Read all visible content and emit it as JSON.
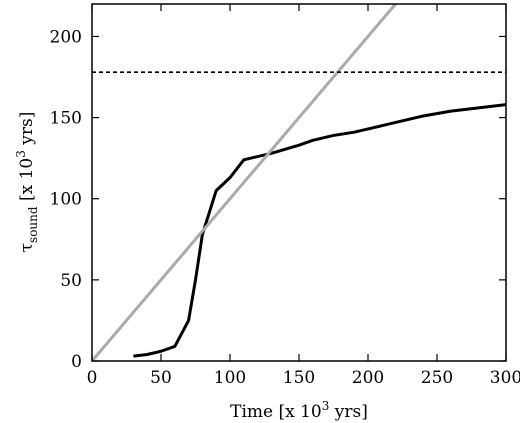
{
  "chart_data": {
    "type": "line",
    "xlabel": {
      "main": "Time [x 10",
      "sup": "3",
      "tail": " yrs]"
    },
    "ylabel": {
      "main": "τ",
      "sub": "sound",
      "mid": " [x 10",
      "sup": "3",
      "tail": " yrs]"
    },
    "xlim": [
      0,
      300
    ],
    "ylim": [
      0,
      220
    ],
    "xticks": [
      0,
      50,
      100,
      150,
      200,
      250,
      300
    ],
    "yticks": [
      0,
      50,
      100,
      150,
      200
    ],
    "grid": false,
    "series": [
      {
        "style": "solid",
        "color": "#000000",
        "x": [
          30,
          40,
          50,
          60,
          70,
          75,
          80,
          90,
          100,
          110,
          130,
          150,
          160,
          175,
          190,
          200,
          220,
          240,
          260,
          280,
          300
        ],
        "y": [
          3,
          4,
          6,
          9,
          25,
          50,
          78,
          105,
          113,
          124,
          128,
          133,
          136,
          139,
          141,
          143,
          147,
          151,
          154,
          156,
          158
        ]
      },
      {
        "style": "solid",
        "color": "#aaaaaa",
        "x": [
          0,
          220
        ],
        "y": [
          0,
          220
        ]
      },
      {
        "style": "dashed",
        "color": "#000000",
        "x": [
          0,
          300
        ],
        "y": [
          178,
          178
        ]
      }
    ]
  }
}
